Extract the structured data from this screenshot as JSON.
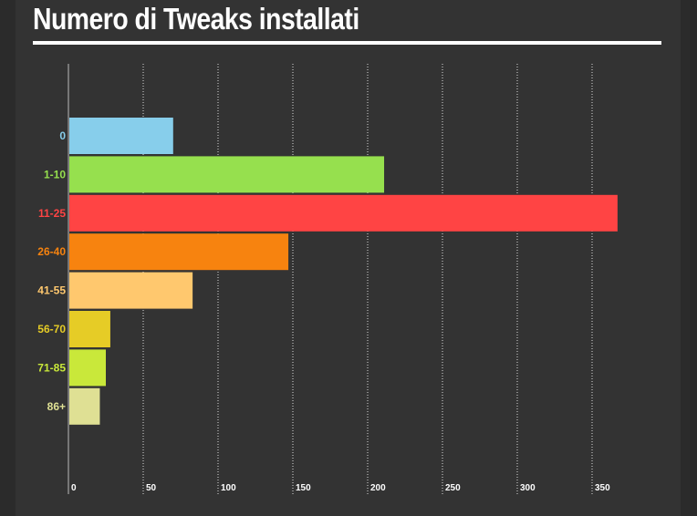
{
  "title": "Numero di Tweaks installati",
  "chart_data": {
    "type": "bar",
    "orientation": "horizontal",
    "title": "Numero di Tweaks installati",
    "categories": [
      "0",
      "1-10",
      "11-25",
      "26-40",
      "41-55",
      "56-70",
      "71-85",
      "86+"
    ],
    "values": [
      70,
      211,
      367,
      147,
      83,
      28,
      25,
      21
    ],
    "colors": [
      "#87ceeb",
      "#96e04e",
      "#ff4444",
      "#f7830f",
      "#ffc86e",
      "#e6cc26",
      "#c9e83a",
      "#dfe094"
    ],
    "xticks": [
      "0",
      "50",
      "100",
      "150",
      "200",
      "250",
      "300",
      "350"
    ],
    "xlim": [
      0,
      400
    ],
    "xlabel": "",
    "ylabel": "",
    "grid": "vertical-dotted",
    "legend": "none"
  }
}
